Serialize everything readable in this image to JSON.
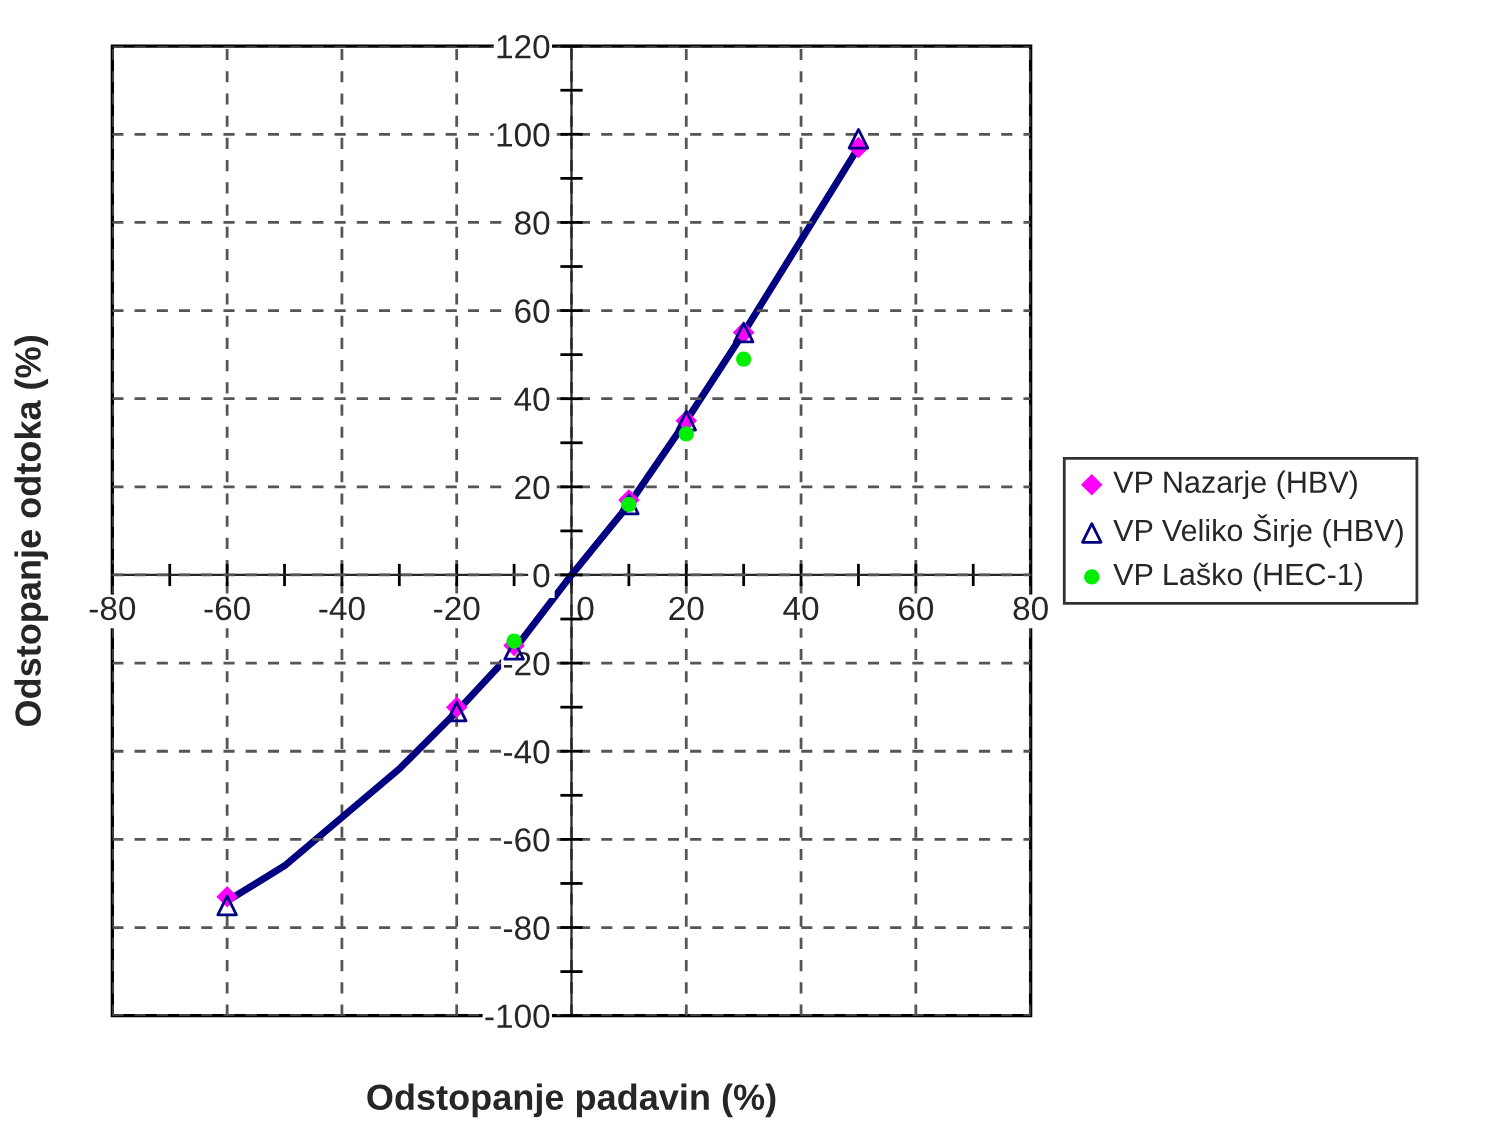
{
  "chart_data": {
    "type": "scatter",
    "xlabel": "Odstopanje padavin (%)",
    "ylabel": "Odstopanje odtoka (%)",
    "xlim": [
      -80,
      80
    ],
    "ylim": [
      -100,
      120
    ],
    "xticks": [
      -80,
      {
        "value": -70,
        "label": null
      },
      -60,
      {
        "value": -50,
        "label": null
      },
      -40,
      {
        "value": -30,
        "label": null
      },
      -20,
      {
        "value": -10,
        "label": null
      },
      0,
      {
        "value": 10,
        "label": null
      },
      20,
      {
        "value": 30,
        "label": null
      },
      40,
      {
        "value": 50,
        "label": null
      },
      60,
      {
        "value": 70,
        "label": null
      },
      80
    ],
    "yticks": [
      -100,
      {
        "value": -90,
        "label": null
      },
      -80,
      {
        "value": -70,
        "label": null
      },
      -60,
      {
        "value": -50,
        "label": null
      },
      -40,
      {
        "value": -30,
        "label": null
      },
      -20,
      {
        "value": -10,
        "label": null
      },
      0,
      {
        "value": 10,
        "label": null
      },
      20,
      {
        "value": 30,
        "label": null
      },
      40,
      {
        "value": 50,
        "label": null
      },
      60,
      {
        "value": 70,
        "label": null
      },
      80,
      {
        "value": 90,
        "label": null
      },
      100,
      {
        "value": 110,
        "label": null
      },
      120
    ],
    "grid": true,
    "legend": "right",
    "series": [
      {
        "type": "line",
        "color": "#000080",
        "marker": "none",
        "line_style": "solid",
        "x": [
          -60,
          -50,
          -40,
          -30,
          -20,
          -10,
          0,
          10,
          20,
          30,
          40,
          50
        ],
        "values": [
          -74,
          -66,
          -55,
          -44,
          -31,
          -17,
          0,
          16,
          35,
          55,
          76,
          97
        ]
      },
      {
        "name": "VP Nazarje (HBV)",
        "color": "#ff00ff",
        "marker": "diamond",
        "x": [
          -60,
          -20,
          -10,
          10,
          20,
          30,
          50
        ],
        "values": [
          -73,
          -30,
          -16,
          17,
          35,
          55,
          97
        ]
      },
      {
        "name": "VP Veliko Širje (HBV)",
        "color": "#000080",
        "marker": "triangle",
        "x": [
          -60,
          -20,
          -10,
          10,
          20,
          30,
          50
        ],
        "values": [
          -75,
          -31,
          -17,
          16,
          35,
          55,
          99
        ]
      },
      {
        "name": "VP Laško (HEC-1)",
        "color": "#00ee00",
        "marker": "circle",
        "x": [
          -10,
          10,
          20,
          30
        ],
        "values": [
          -15,
          16,
          32,
          49
        ]
      }
    ]
  }
}
